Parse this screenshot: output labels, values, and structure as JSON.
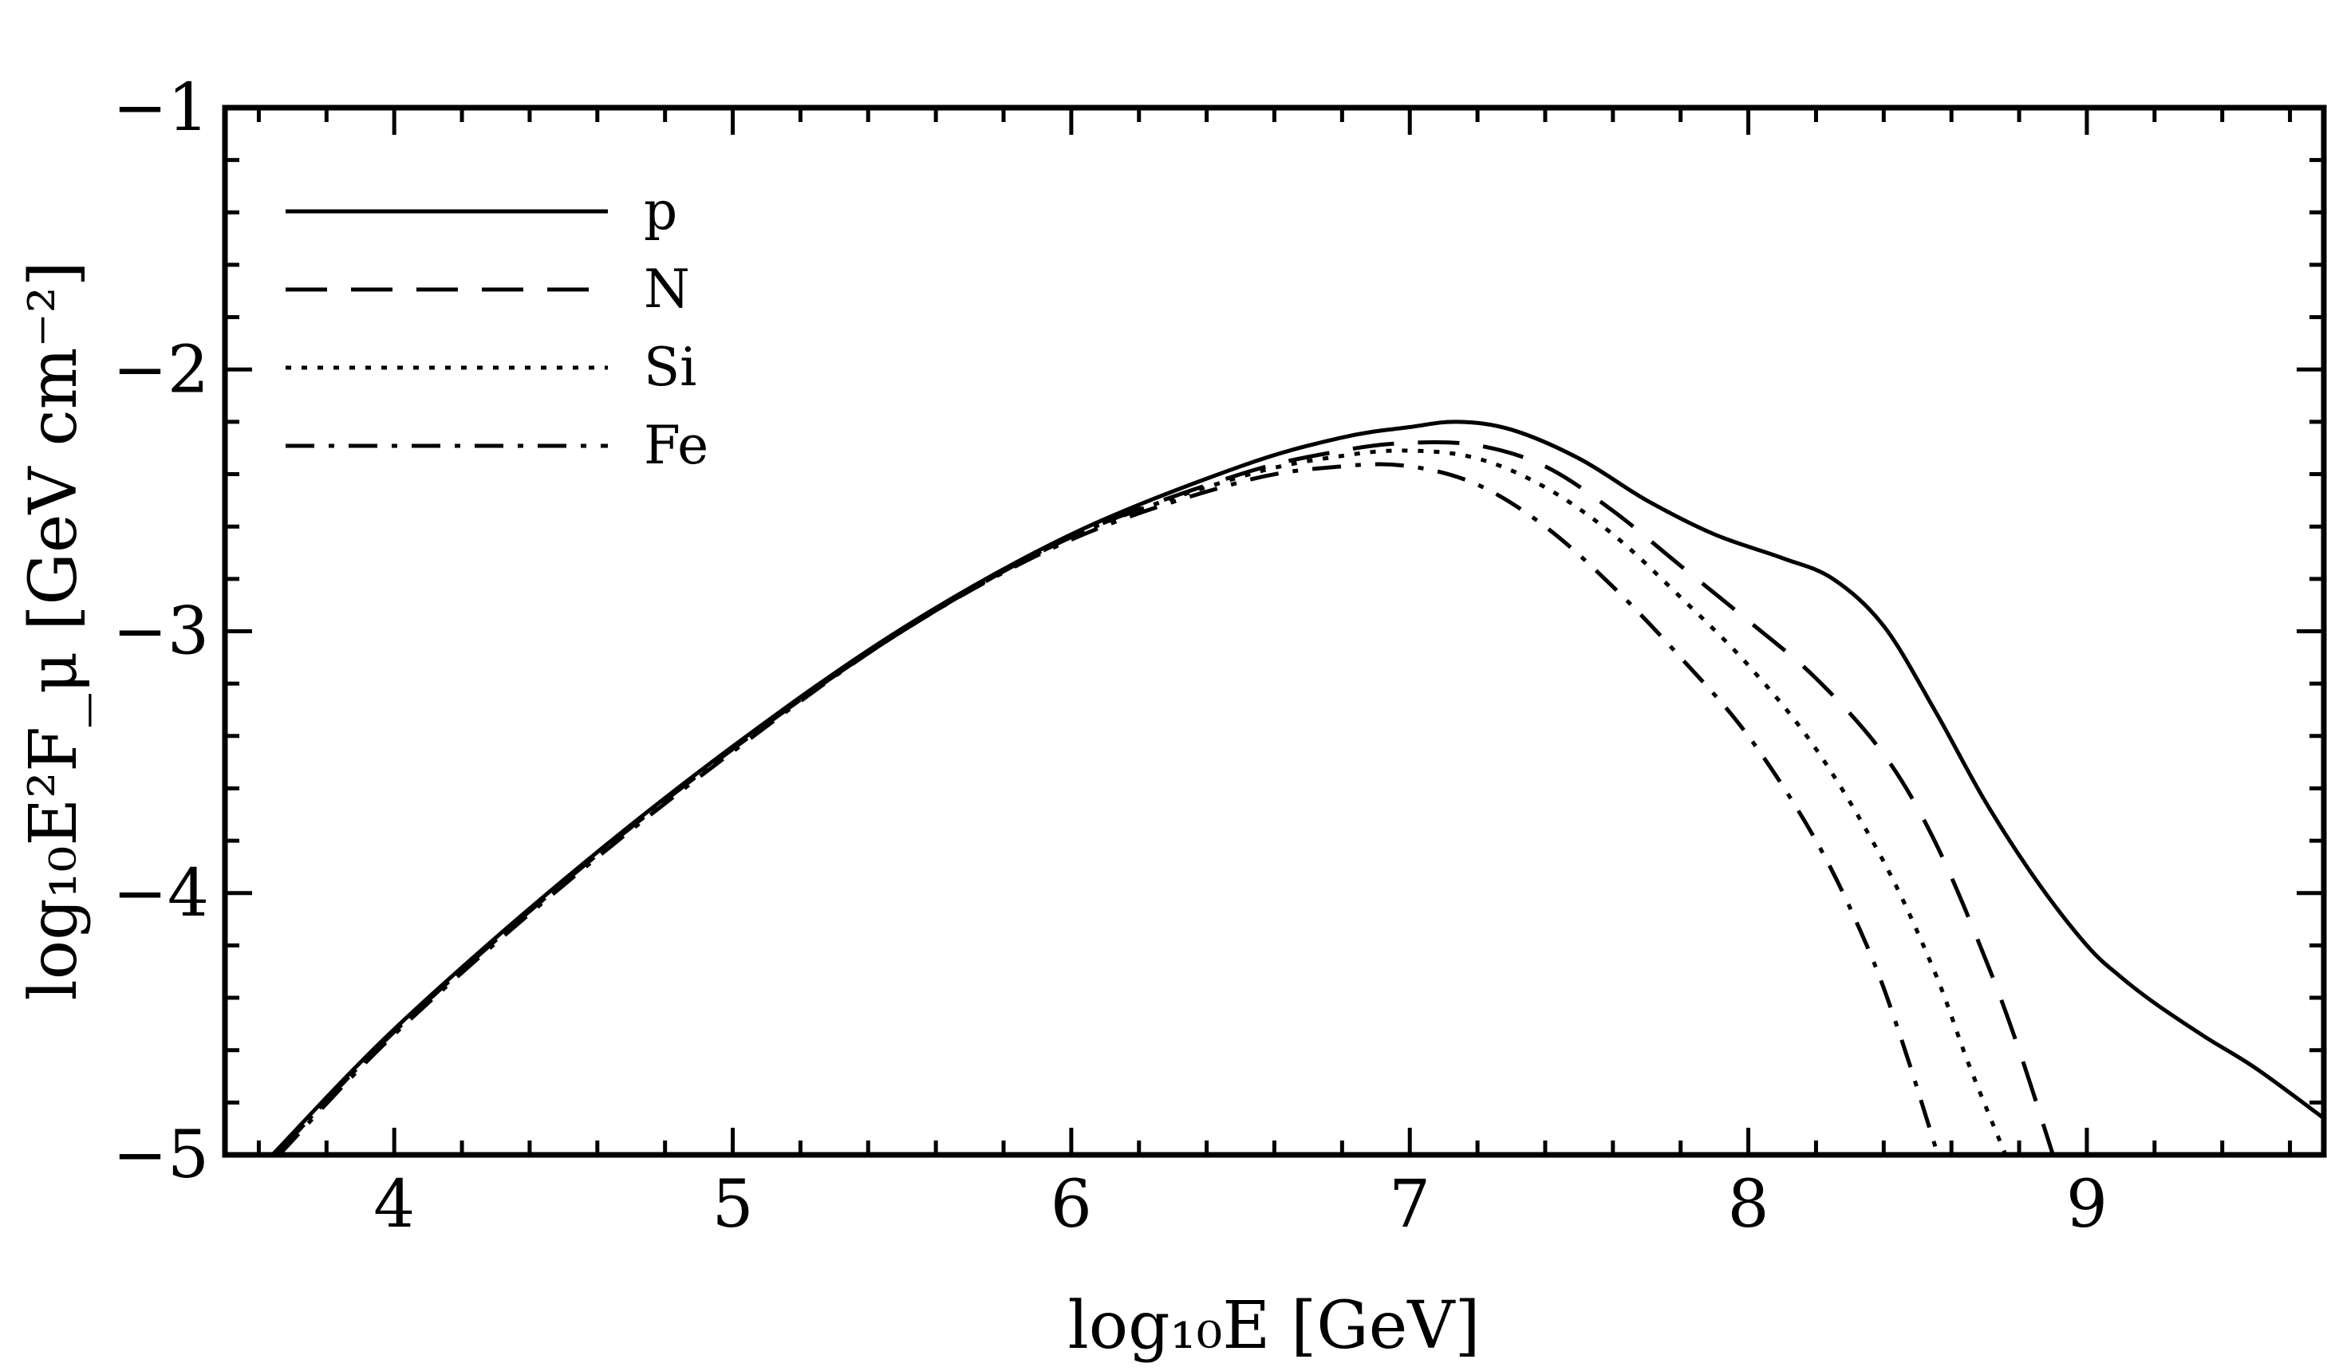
{
  "chart_data": {
    "type": "line",
    "xlabel": "log₁₀E [GeV]",
    "ylabel": "log₁₀E²F_μ [GeV cm⁻²]",
    "xlim": [
      3.5,
      9.7
    ],
    "ylim": [
      -5,
      -1
    ],
    "x_ticks": [
      4,
      5,
      6,
      7,
      8,
      9
    ],
    "x_tick_labels": [
      "4",
      "5",
      "6",
      "7",
      "8",
      "9"
    ],
    "y_ticks": [
      -5,
      -4,
      -3,
      -2,
      -1
    ],
    "y_tick_labels": [
      "−5",
      "−4",
      "−3",
      "−2",
      "−1"
    ],
    "legend_position": "top-left",
    "series": [
      {
        "name": "p",
        "style": "solid",
        "x": [
          3.64,
          4.0,
          4.5,
          5.0,
          5.5,
          6.0,
          6.5,
          6.8,
          7.0,
          7.14,
          7.3,
          7.5,
          7.7,
          7.9,
          8.1,
          8.25,
          8.4,
          8.55,
          8.7,
          8.85,
          9.0,
          9.1,
          9.2,
          9.35,
          9.5,
          9.7
        ],
        "y": [
          -5.0,
          -4.52,
          -3.95,
          -3.44,
          -2.99,
          -2.63,
          -2.37,
          -2.26,
          -2.22,
          -2.2,
          -2.23,
          -2.34,
          -2.5,
          -2.63,
          -2.72,
          -2.8,
          -2.98,
          -3.3,
          -3.65,
          -3.95,
          -4.2,
          -4.32,
          -4.42,
          -4.55,
          -4.67,
          -4.86
        ]
      },
      {
        "name": "N",
        "style": "dashed",
        "x": [
          3.65,
          4.0,
          4.5,
          5.0,
          5.5,
          6.0,
          6.5,
          6.8,
          7.0,
          7.2,
          7.4,
          7.6,
          7.8,
          8.0,
          8.2,
          8.4,
          8.55,
          8.7,
          8.8,
          8.9
        ],
        "y": [
          -5.0,
          -4.53,
          -3.96,
          -3.45,
          -3.0,
          -2.64,
          -2.4,
          -2.31,
          -2.28,
          -2.29,
          -2.37,
          -2.54,
          -2.75,
          -2.96,
          -3.18,
          -3.47,
          -3.8,
          -4.25,
          -4.6,
          -5.0
        ]
      },
      {
        "name": "Si",
        "style": "dotted",
        "x": [
          3.65,
          4.0,
          4.5,
          5.0,
          5.5,
          6.0,
          6.5,
          6.8,
          7.0,
          7.2,
          7.4,
          7.6,
          7.8,
          8.0,
          8.2,
          8.4,
          8.55,
          8.65,
          8.76
        ],
        "y": [
          -5.0,
          -4.53,
          -3.96,
          -3.45,
          -3.0,
          -2.64,
          -2.41,
          -2.33,
          -2.31,
          -2.34,
          -2.45,
          -2.63,
          -2.87,
          -3.13,
          -3.45,
          -3.88,
          -4.3,
          -4.65,
          -5.0
        ]
      },
      {
        "name": "Fe",
        "style": "dashdot",
        "x": [
          3.66,
          4.0,
          4.5,
          5.0,
          5.5,
          6.0,
          6.5,
          6.8,
          7.0,
          7.2,
          7.4,
          7.6,
          7.8,
          8.0,
          8.2,
          8.35,
          8.45,
          8.56
        ],
        "y": [
          -5.0,
          -4.54,
          -3.97,
          -3.46,
          -3.0,
          -2.65,
          -2.43,
          -2.37,
          -2.37,
          -2.44,
          -2.6,
          -2.83,
          -3.1,
          -3.4,
          -3.8,
          -4.2,
          -4.55,
          -5.0
        ]
      }
    ]
  }
}
